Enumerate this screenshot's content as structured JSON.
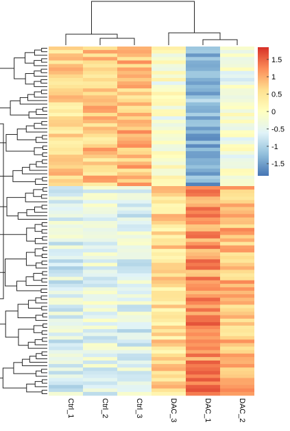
{
  "chart_data": {
    "type": "heatmap",
    "title": "",
    "columns": [
      "Ctrl_1",
      "Ctrl_2",
      "Ctrl_3",
      "DAC_3",
      "DAC_1",
      "DAC_2"
    ],
    "n_rows": 100,
    "legend": {
      "placement": "top-right",
      "ticks": [
        "1.5",
        "1",
        "0.5",
        "0",
        "-0.5",
        "-1",
        "-1.5"
      ],
      "tick_values": [
        1.5,
        1,
        0.5,
        0,
        -0.5,
        -1,
        -1.5
      ],
      "range": [
        -1.85,
        1.85
      ],
      "colors": [
        "#4575b4",
        "#91bfdb",
        "#e0f3f8",
        "#ffffbf",
        "#fee090",
        "#fc8d59",
        "#d73027"
      ]
    },
    "column_dendrogram": true,
    "row_dendrogram": true,
    "blocks": [
      {
        "rows": [
          0,
          39
        ],
        "values_by_column": [
          0.6,
          0.75,
          0.85,
          -0.15,
          -1.3,
          -0.3
        ]
      },
      {
        "rows": [
          40,
          99
        ],
        "values_by_column": [
          -0.6,
          -0.45,
          -0.55,
          0.55,
          1.2,
          0.85
        ]
      }
    ]
  }
}
